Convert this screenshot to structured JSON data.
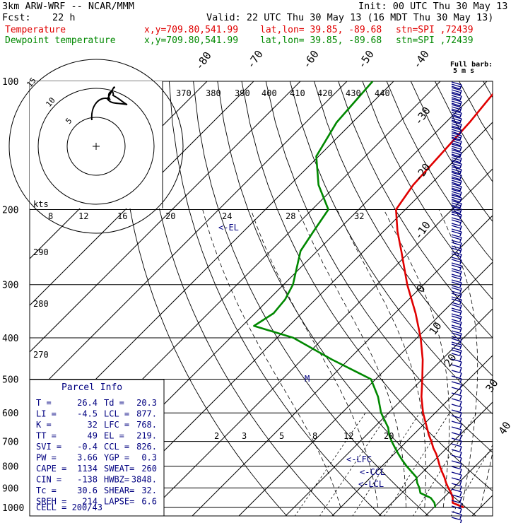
{
  "header": {
    "model": "3km ARW-WRF -- NCAR/MMM",
    "init": "Init: 00 UTC Thu 30 May 13",
    "fcst_label": "Fcst:",
    "fcst_value": "22 h",
    "valid": "Valid: 22 UTC Thu 30 May 13 (16 MDT Thu 30 May 13)",
    "temp_line": {
      "name": "Temperature",
      "xy": "x,y=709.80,541.99",
      "latlon": "lat,lon= 39.85, -89.68",
      "stn": "stn=SPI ,72439"
    },
    "dew_line": {
      "name": "Dewpoint temperature",
      "xy": "x,y=709.80,541.99",
      "latlon": "lat,lon= 39.85, -89.68",
      "stn": "stn=SPI ,72439"
    }
  },
  "barb_note": {
    "line1": "Full barb:",
    "line2": "5 m s"
  },
  "parcel_info": {
    "title": "Parcel Info",
    "rows": [
      [
        "T    =",
        "26.4",
        "Td  =",
        "20.3"
      ],
      [
        "LI   =",
        "-4.5",
        "LCL =",
        "877."
      ],
      [
        "K    =",
        "32",
        "LFC =",
        "768."
      ],
      [
        "TT   =",
        "49",
        "EL  =",
        "219."
      ],
      [
        "SVI  =",
        "-0.4",
        "CCL =",
        "826."
      ],
      [
        "PW   =",
        "3.66",
        "YGP =",
        "0.3"
      ],
      [
        "CAPE =",
        "1134",
        "SWEAT=",
        "260"
      ],
      [
        "CIN  =",
        "-138",
        "HWBZ=",
        "3848."
      ],
      [
        "Tc   =",
        "30.6",
        "SHEAR=",
        "32."
      ],
      [
        "SREH =",
        "214",
        "LAPSE=",
        "6.6"
      ]
    ],
    "cell": "CELL = 200/43"
  },
  "level_labels": {
    "el": "<-EL",
    "lfc": "<-LFC",
    "ccl": "<-CCL",
    "lcl": "<-LCL",
    "m": "M"
  },
  "hodograph": {
    "kts": "kts",
    "ring_labels": [
      "8",
      "12",
      "16",
      "20",
      "24",
      "28",
      "32"
    ],
    "inner_labels": [
      "5",
      "10",
      "15"
    ]
  },
  "theta_labels": [
    "370",
    "380",
    "390",
    "400",
    "410",
    "420",
    "430",
    "440"
  ],
  "theta_left_labels": [
    "290",
    "280",
    "270"
  ],
  "mixing_labels": [
    "2",
    "3",
    "5",
    "8",
    "12",
    "20"
  ],
  "chart_data": {
    "type": "line",
    "title": "",
    "xlabel": "",
    "ylabel": "",
    "y_axis": {
      "scale": "log-pressure",
      "unit": "hPa",
      "ticks": [
        100,
        200,
        300,
        400,
        500,
        600,
        700,
        800,
        900,
        1000
      ]
    },
    "isotherm_labels": [
      -80,
      -70,
      -60,
      -50,
      -40,
      -30,
      -20,
      -10,
      0,
      10,
      20,
      30,
      40
    ],
    "series": [
      {
        "name": "Temperature",
        "color": "#e00000",
        "unit": "C",
        "points": [
          [
            1000,
            26.4
          ],
          [
            975,
            23.0
          ],
          [
            950,
            22.0
          ],
          [
            925,
            20.6
          ],
          [
            900,
            18.9
          ],
          [
            875,
            17.3
          ],
          [
            850,
            15.8
          ],
          [
            825,
            14.1
          ],
          [
            800,
            12.4
          ],
          [
            775,
            10.8
          ],
          [
            750,
            9.1
          ],
          [
            725,
            7.1
          ],
          [
            700,
            5.3
          ],
          [
            675,
            3.3
          ],
          [
            650,
            1.4
          ],
          [
            600,
            -2.6
          ],
          [
            550,
            -6.4
          ],
          [
            500,
            -10.0
          ],
          [
            450,
            -14.1
          ],
          [
            400,
            -19.2
          ],
          [
            350,
            -25.6
          ],
          [
            300,
            -33.5
          ],
          [
            250,
            -42.0
          ],
          [
            225,
            -47.0
          ],
          [
            200,
            -52.0
          ],
          [
            175,
            -53.6
          ],
          [
            150,
            -54.2
          ],
          [
            125,
            -54.9
          ],
          [
            100,
            -56.5
          ]
        ]
      },
      {
        "name": "Dewpoint temperature",
        "color": "#008800",
        "unit": "C",
        "points": [
          [
            1000,
            20.3
          ],
          [
            975,
            19.1
          ],
          [
            950,
            17.3
          ],
          [
            925,
            14.0
          ],
          [
            900,
            12.7
          ],
          [
            875,
            11.1
          ],
          [
            850,
            9.8
          ],
          [
            825,
            7.6
          ],
          [
            800,
            5.3
          ],
          [
            775,
            3.1
          ],
          [
            750,
            1.0
          ],
          [
            725,
            -1.1
          ],
          [
            700,
            -3.2
          ],
          [
            675,
            -5.2
          ],
          [
            650,
            -6.9
          ],
          [
            600,
            -11.6
          ],
          [
            550,
            -15.7
          ],
          [
            500,
            -21.0
          ],
          [
            450,
            -33.5
          ],
          [
            400,
            -46.5
          ],
          [
            375,
            -57.5
          ],
          [
            350,
            -56.0
          ],
          [
            325,
            -56.5
          ],
          [
            300,
            -58.0
          ],
          [
            250,
            -63.6
          ],
          [
            225,
            -65.0
          ],
          [
            200,
            -66.5
          ],
          [
            175,
            -73.9
          ],
          [
            150,
            -80.5
          ],
          [
            125,
            -83.4
          ],
          [
            100,
            -84.5
          ]
        ]
      }
    ],
    "barb_wind_color": "#000080"
  }
}
